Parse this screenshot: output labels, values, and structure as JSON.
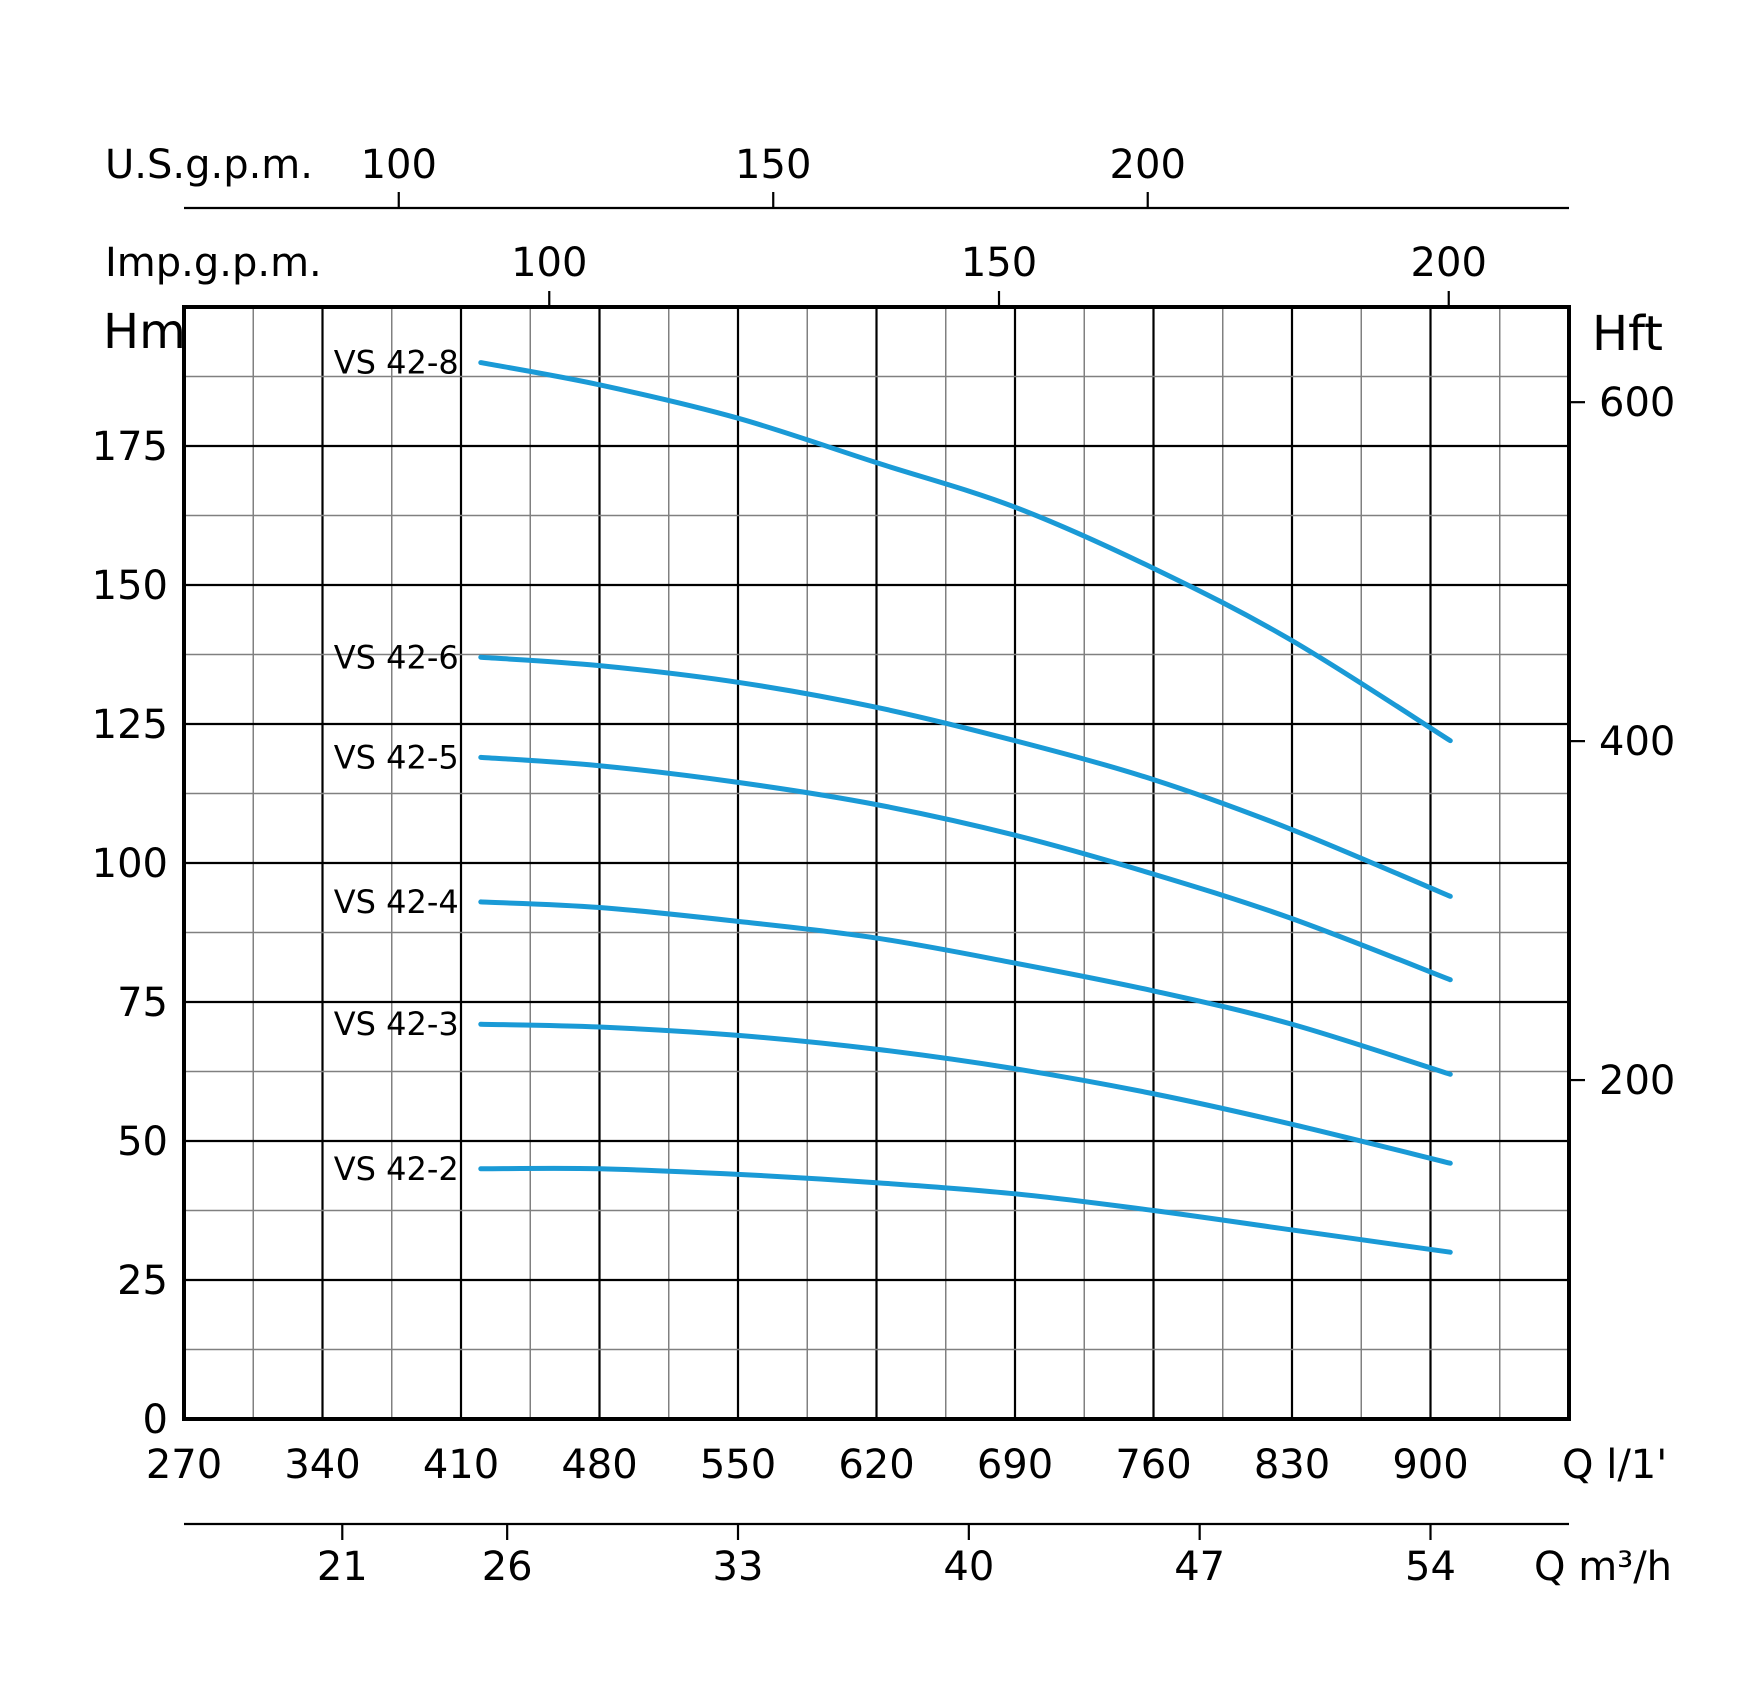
{
  "chart_data": {
    "type": "line",
    "title": "",
    "colors": {
      "curve": "#1a9ad6"
    },
    "x_axis": {
      "label": "Q l/1'",
      "range": [
        270,
        970
      ],
      "major_ticks": [
        "270",
        "340",
        "410",
        "480",
        "550",
        "620",
        "690",
        "760",
        "830",
        "900"
      ],
      "minor_step": 35
    },
    "y_axis_left": {
      "label": "Hm",
      "range": [
        0,
        200
      ],
      "major_ticks": [
        "0",
        "25",
        "50",
        "75",
        "100",
        "125",
        "150",
        "175"
      ],
      "minor_step": 12.5
    },
    "y_axis_right": {
      "label": "Hft",
      "ticks": [
        "200",
        "400",
        "600"
      ]
    },
    "x_axis_top_usgpm": {
      "label": "U.S.g.p.m.",
      "ticks": [
        "100",
        "150",
        "200"
      ]
    },
    "x_axis_top_impgpm": {
      "label": "Imp.g.p.m.",
      "ticks": [
        "100",
        "150",
        "200"
      ]
    },
    "x_axis_bottom_m3h": {
      "label": "Q m³/h",
      "ticks": [
        "21",
        "26",
        "33",
        "40",
        "47",
        "54"
      ]
    },
    "series": [
      {
        "name": "VS 42-8",
        "x": [
          420,
          480,
          550,
          620,
          690,
          760,
          830,
          910
        ],
        "y": [
          190,
          186,
          180,
          172,
          164,
          153,
          140,
          122
        ]
      },
      {
        "name": "VS 42-6",
        "x": [
          420,
          480,
          550,
          620,
          690,
          760,
          830,
          910
        ],
        "y": [
          137,
          135.5,
          132.5,
          128,
          122,
          115,
          106,
          94
        ]
      },
      {
        "name": "VS 42-5",
        "x": [
          420,
          480,
          550,
          620,
          690,
          760,
          830,
          910
        ],
        "y": [
          119,
          117.5,
          114.5,
          110.5,
          105,
          98,
          90,
          79
        ]
      },
      {
        "name": "VS 42-4",
        "x": [
          420,
          480,
          550,
          620,
          690,
          760,
          830,
          910
        ],
        "y": [
          93,
          92,
          89.5,
          86.5,
          82,
          77,
          71,
          62
        ]
      },
      {
        "name": "VS 42-3",
        "x": [
          420,
          480,
          550,
          620,
          690,
          760,
          830,
          910
        ],
        "y": [
          71,
          70.5,
          69,
          66.5,
          63,
          58.5,
          53,
          46
        ]
      },
      {
        "name": "VS 42-2",
        "x": [
          420,
          480,
          550,
          620,
          690,
          760,
          830,
          910
        ],
        "y": [
          45,
          45,
          44,
          42.5,
          40.5,
          37.5,
          34,
          30
        ]
      }
    ]
  }
}
